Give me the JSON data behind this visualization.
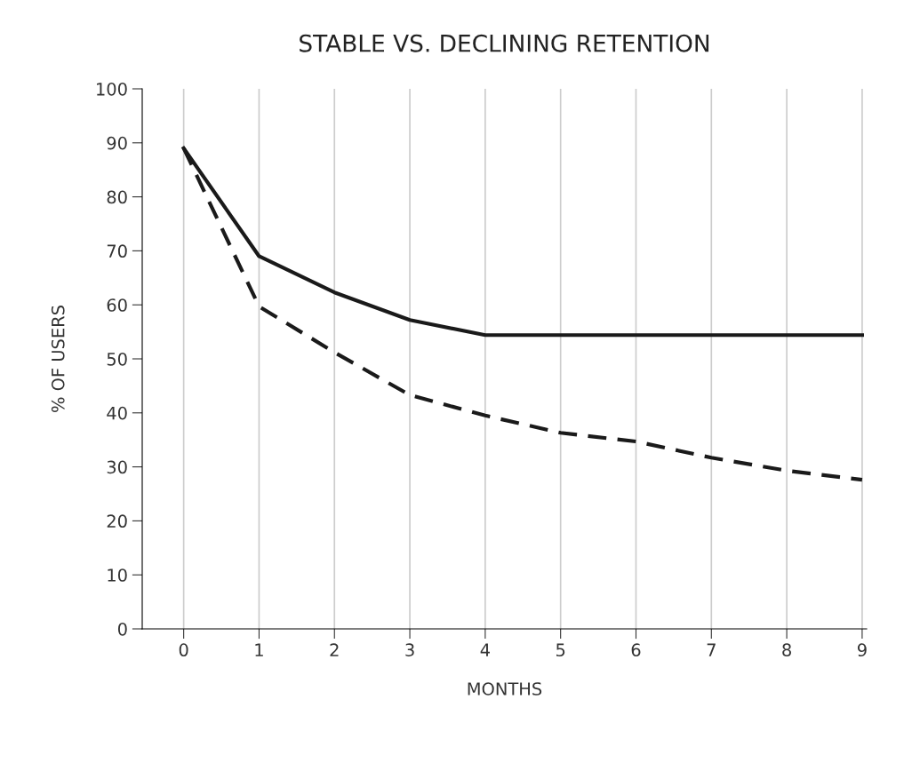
{
  "chart_data": {
    "type": "line",
    "title": "STABLE VS. DECLINING RETENTION",
    "xlabel": "MONTHS",
    "ylabel": "% OF USERS",
    "x": [
      0,
      1,
      2,
      3,
      4,
      5,
      6,
      7,
      8,
      9
    ],
    "series": [
      {
        "color": "#1a1a1a",
        "line_style": "solid",
        "values": [
          89,
          69,
          62.3,
          57.2,
          54.4,
          54.4,
          54.4,
          54.4,
          54.4,
          54.4
        ]
      },
      {
        "color": "#1a1a1a",
        "line_style": "dashed",
        "values": [
          89,
          59.7,
          51.2,
          43.3,
          39.5,
          36.3,
          34.7,
          31.7,
          29.3,
          27.6
        ]
      }
    ],
    "xlim": [
      -0.55,
      9.06
    ],
    "xticks": [
      0,
      1,
      2,
      3,
      4,
      5,
      6,
      7,
      8,
      9
    ],
    "ylim": [
      0,
      100
    ],
    "yticks": [
      0,
      10,
      20,
      30,
      40,
      50,
      60,
      70,
      80,
      90,
      100
    ],
    "grid": "x",
    "marker": "none"
  }
}
